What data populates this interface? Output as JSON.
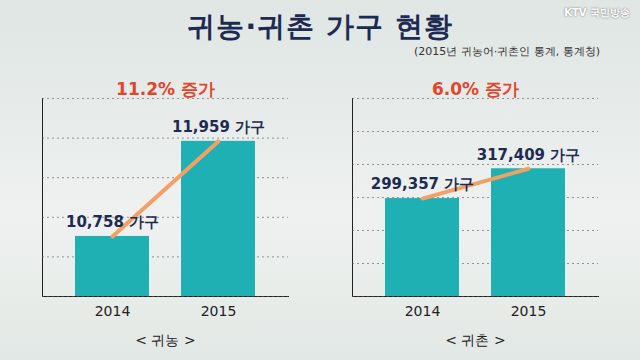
{
  "title": "귀농·귀촌 가구 현황",
  "subtitle": "(2015년 귀농어·귀촌인 통계, 통계청)",
  "logo": "KTV 국민방송",
  "chart_data": [
    {
      "type": "bar",
      "xlabel": "< 귀농 >",
      "categories": [
        "2014",
        "2015"
      ],
      "values": [
        10758,
        11959
      ],
      "value_labels": [
        "10,758 가구",
        "11,959 가구"
      ],
      "data_labels": true,
      "color": "#1fb0b4",
      "ylim": [
        10000,
        12500
      ],
      "yticks": [
        10000,
        10500,
        11000,
        11500,
        12000,
        12500
      ],
      "grid": true,
      "tick_labels": "x",
      "annotation": "11.2% 증가"
    },
    {
      "type": "bar",
      "xlabel": "< 귀촌 >",
      "categories": [
        "2014",
        "2015"
      ],
      "values": [
        299357,
        317409
      ],
      "value_labels": [
        "299,357 가구",
        "317,409 가구"
      ],
      "data_labels": true,
      "color": "#1fb0b4",
      "ylim": [
        240000,
        360000
      ],
      "yticks": [
        240000,
        260000,
        280000,
        300000,
        320000,
        340000,
        360000
      ],
      "grid": true,
      "tick_labels": "x",
      "annotation": "6.0% 증가"
    }
  ]
}
